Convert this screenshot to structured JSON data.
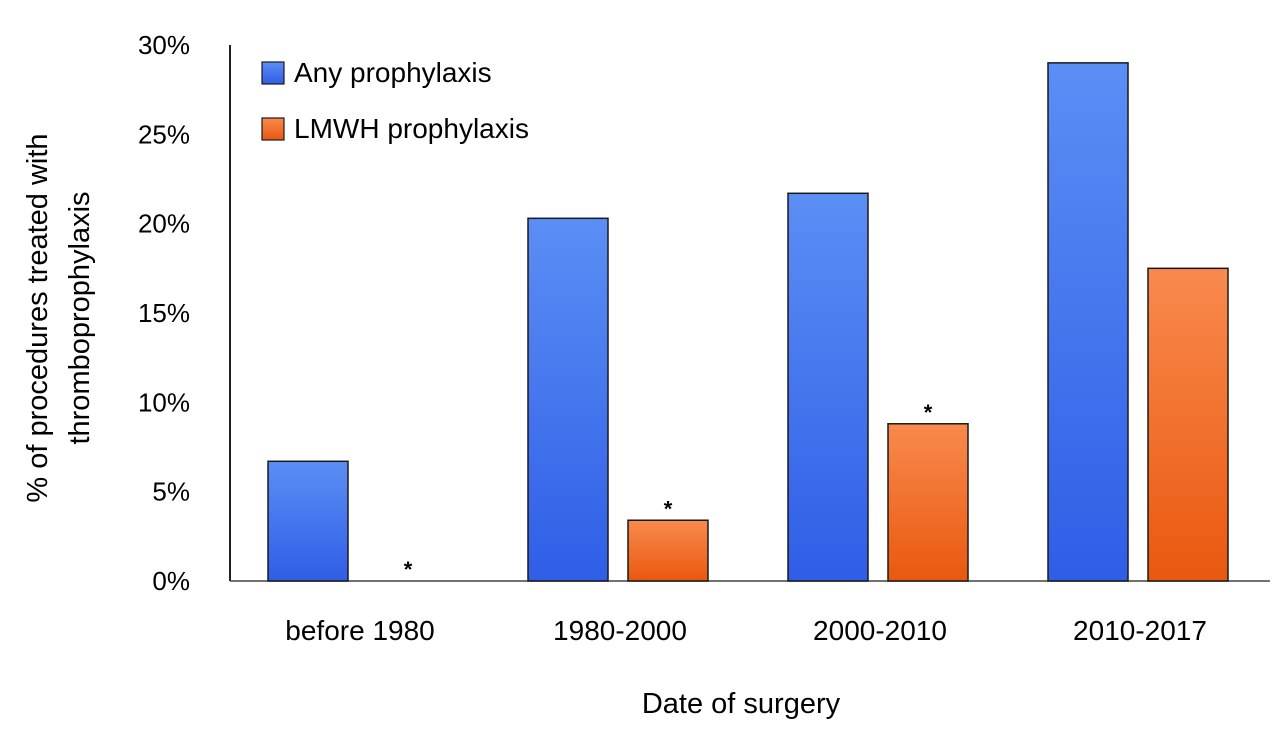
{
  "chart_data": {
    "type": "bar",
    "title": "",
    "xlabel": "Date of surgery",
    "ylabel_lines": [
      "% of procedures treated with",
      "thromboprophylaxis"
    ],
    "categories": [
      "before 1980",
      "1980-2000",
      "2000-2010",
      "2010-2017"
    ],
    "ylim": [
      0,
      30
    ],
    "yticks": [
      0,
      5,
      10,
      15,
      20,
      25,
      30
    ],
    "ytick_labels": [
      "0%",
      "5%",
      "10%",
      "15%",
      "20%",
      "25%",
      "30%"
    ],
    "series": [
      {
        "name": "Any prophylaxis",
        "values": [
          6.7,
          20.3,
          21.7,
          29.0
        ],
        "color_top": "#5b8ef5",
        "color_bottom": "#2f5ee6"
      },
      {
        "name": "LMWH prophylaxis",
        "values": [
          0,
          3.4,
          8.8,
          17.5
        ],
        "color_top": "#f98a4d",
        "color_bottom": "#e9580f"
      }
    ],
    "annotations": [
      {
        "category": "before 1980",
        "series": "LMWH prophylaxis",
        "text": "*"
      },
      {
        "category": "1980-2000",
        "series": "LMWH prophylaxis",
        "text": "*"
      },
      {
        "category": "2000-2010",
        "series": "LMWH prophylaxis",
        "text": "*"
      }
    ],
    "legend_position": "top-left",
    "grid": false
  }
}
